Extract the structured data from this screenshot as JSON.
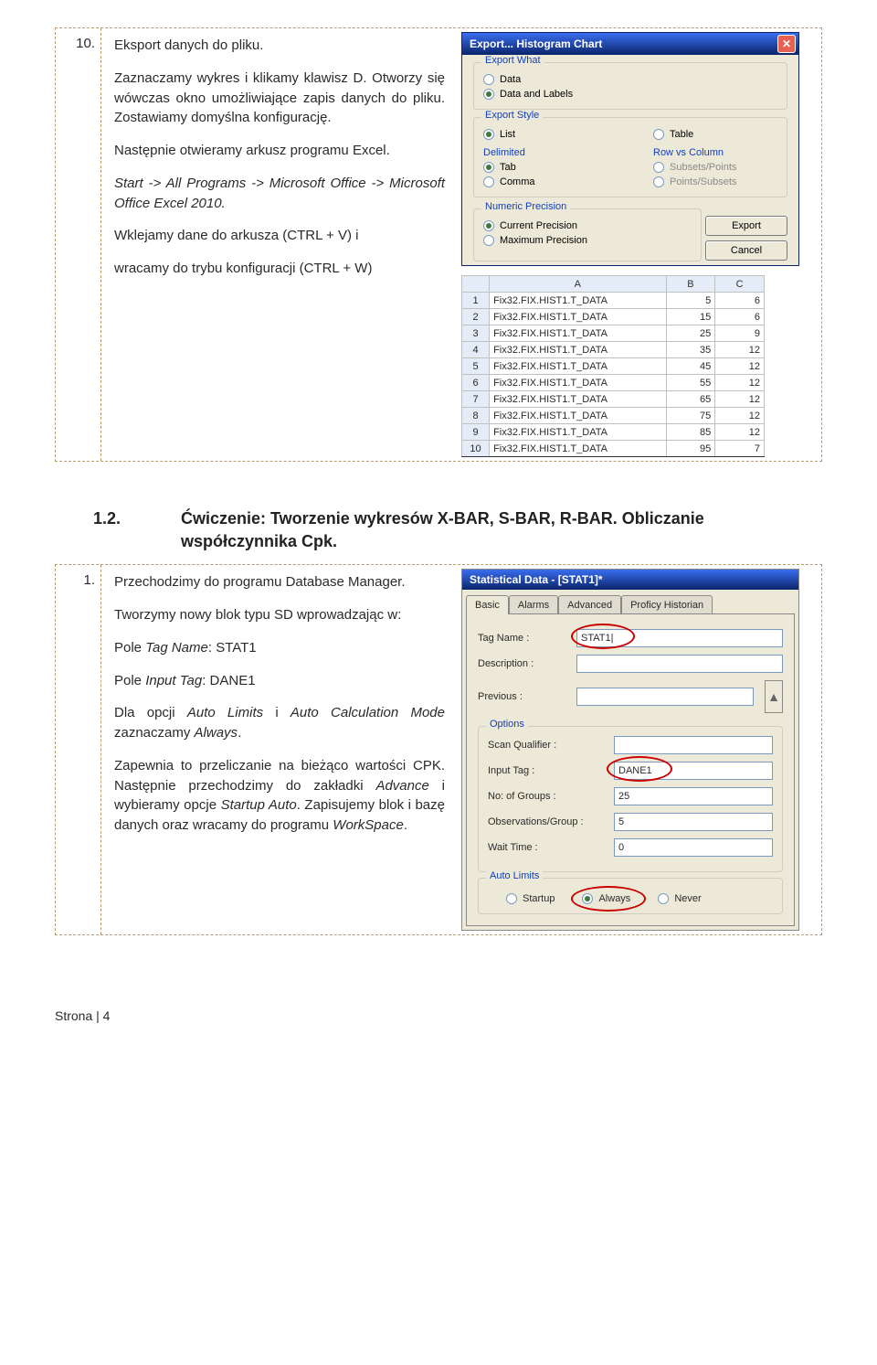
{
  "step10": {
    "num": "10.",
    "title": "Eksport danych do pliku.",
    "p1": "Zaznaczamy wykres i klikamy klawisz D. Otworzy się wówczas okno umożliwiające zapis danych do pliku. Zostawiamy domyślna konfigurację.",
    "p2": "Następnie otwieramy arkusz programu Excel.",
    "p3": "Start -> All Programs -> Microsoft Office -> Microsoft Office Excel 2010.",
    "p4": "Wklejamy dane do arkusza (CTRL + V) i",
    "p5": "wracamy do trybu konfiguracji (CTRL + W)"
  },
  "exportDialog": {
    "title": "Export... Histogram Chart",
    "groups": {
      "what": {
        "title": "Export What",
        "opt1": "Data",
        "opt2": "Data and Labels"
      },
      "style": {
        "title": "Export Style",
        "list": "List",
        "table": "Table",
        "delimited": "Delimited",
        "rowcol": "Row vs Column",
        "tab": "Tab",
        "subpts": "Subsets/Points",
        "comma": "Comma",
        "ptssubs": "Points/Subsets"
      },
      "precision": {
        "title": "Numeric Precision",
        "cur": "Current Precision",
        "max": "Maximum Precision"
      }
    },
    "buttons": {
      "export": "Export",
      "cancel": "Cancel"
    }
  },
  "excel": {
    "headers": [
      "",
      "A",
      "B",
      "C"
    ],
    "rows": [
      [
        "1",
        "Fix32.FIX.HIST1.T_DATA",
        "5",
        "6"
      ],
      [
        "2",
        "Fix32.FIX.HIST1.T_DATA",
        "15",
        "6"
      ],
      [
        "3",
        "Fix32.FIX.HIST1.T_DATA",
        "25",
        "9"
      ],
      [
        "4",
        "Fix32.FIX.HIST1.T_DATA",
        "35",
        "12"
      ],
      [
        "5",
        "Fix32.FIX.HIST1.T_DATA",
        "45",
        "12"
      ],
      [
        "6",
        "Fix32.FIX.HIST1.T_DATA",
        "55",
        "12"
      ],
      [
        "7",
        "Fix32.FIX.HIST1.T_DATA",
        "65",
        "12"
      ],
      [
        "8",
        "Fix32.FIX.HIST1.T_DATA",
        "75",
        "12"
      ],
      [
        "9",
        "Fix32.FIX.HIST1.T_DATA",
        "85",
        "12"
      ],
      [
        "10",
        "Fix32.FIX.HIST1.T_DATA",
        "95",
        "7"
      ]
    ]
  },
  "section": {
    "num": "1.2.",
    "title": "Ćwiczenie: Tworzenie wykresów X-BAR, S-BAR, R-BAR. Obliczanie współczynnika Cpk."
  },
  "step1": {
    "num": "1.",
    "p1": "Przechodzimy do programu Database Manager.",
    "p2": "Tworzymy nowy blok typu SD wprowadzając w:",
    "p3a": "Pole ",
    "p3b": "Tag Name",
    "p3c": ": STAT1",
    "p4a": "Pole ",
    "p4b": "Input Tag",
    "p4c": ": DANE1",
    "p5a": "Dla opcji ",
    "p5b": "Auto Limits",
    "p5c": " i ",
    "p5d": "Auto Calculation Mode",
    "p5e": " zaznaczamy ",
    "p5f": "Always",
    "p5g": ".",
    "p6a": "Zapewnia to przeliczanie na bieżąco wartości CPK. Następnie przechodzimy do zakładki ",
    "p6b": "Advance",
    "p6c": " i wybieramy opcje ",
    "p6d": "Startup Auto",
    "p6e": ". Zapisujemy blok i bazę danych oraz wracamy do programu ",
    "p6f": "WorkSpace",
    "p6g": "."
  },
  "statWindow": {
    "title": "Statistical Data - [STAT1]*",
    "tabs": {
      "basic": "Basic",
      "alarms": "Alarms",
      "advanced": "Advanced",
      "historian": "Proficy Historian"
    },
    "basic": {
      "tagName": {
        "label": "Tag Name :",
        "value": "STAT1"
      },
      "description": {
        "label": "Description :",
        "value": ""
      },
      "previous": {
        "label": "Previous :",
        "value": ""
      }
    },
    "options": {
      "title": "Options",
      "scanQualifier": {
        "label": "Scan Qualifier :",
        "value": ""
      },
      "inputTag": {
        "label": "Input Tag :",
        "value": "DANE1"
      },
      "noGroups": {
        "label": "No: of Groups :",
        "value": "25"
      },
      "obsGroup": {
        "label": "Observations/Group :",
        "value": "5"
      },
      "waitTime": {
        "label": "Wait Time :",
        "value": "0"
      }
    },
    "autoLimits": {
      "title": "Auto Limits",
      "startup": "Startup",
      "always": "Always",
      "never": "Never"
    }
  },
  "footer": "Strona | 4"
}
